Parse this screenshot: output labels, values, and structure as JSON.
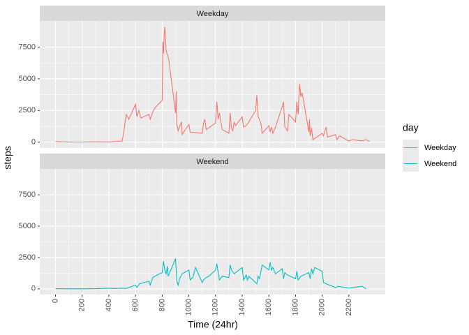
{
  "chart_data": {
    "type": "line",
    "xlabel": "Time (24hr)",
    "ylabel": "steps",
    "legend_title": "day",
    "xlim": [
      -118,
      2473
    ],
    "ylim": [
      -456,
      9567
    ],
    "xticks": [
      0,
      200,
      400,
      600,
      800,
      1000,
      1200,
      1400,
      1600,
      1800,
      2000,
      2200
    ],
    "yticks": [
      0,
      2500,
      5000,
      7500
    ],
    "grid": true,
    "legend": "right",
    "series": [
      {
        "name": "Weekday",
        "color": "#F8766D",
        "x": [
          0,
          100,
          200,
          300,
          400,
          500,
          515,
          530,
          550,
          600,
          610,
          625,
          640,
          700,
          710,
          730,
          745,
          800,
          805,
          810,
          815,
          820,
          830,
          845,
          850,
          900,
          905,
          910,
          920,
          930,
          945,
          950,
          1000,
          1010,
          1100,
          1110,
          1120,
          1130,
          1200,
          1210,
          1220,
          1230,
          1250,
          1300,
          1310,
          1320,
          1330,
          1340,
          1350,
          1400,
          1410,
          1430,
          1450,
          1500,
          1510,
          1520,
          1540,
          1550,
          1600,
          1610,
          1620,
          1630,
          1650,
          1700,
          1710,
          1720,
          1740,
          1750,
          1800,
          1810,
          1820,
          1830,
          1840,
          1850,
          1900,
          1905,
          1910,
          1920,
          1930,
          2000,
          2010,
          2030,
          2040,
          2100,
          2110,
          2130,
          2200,
          2230,
          2300,
          2330,
          2355
        ],
        "values": [
          50,
          20,
          10,
          30,
          20,
          100,
          1000,
          2200,
          1800,
          3000,
          2000,
          2500,
          1900,
          2200,
          1800,
          2400,
          2700,
          3300,
          7900,
          7000,
          8500,
          9100,
          7200,
          6700,
          6500,
          2300,
          4000,
          1400,
          900,
          1200,
          1600,
          600,
          1400,
          800,
          700,
          1500,
          1800,
          1000,
          1500,
          3200,
          1800,
          2300,
          1000,
          700,
          2300,
          1100,
          900,
          1600,
          1300,
          2000,
          1200,
          1300,
          1600,
          2500,
          3700,
          2000,
          1500,
          700,
          1300,
          800,
          1200,
          700,
          1200,
          2800,
          3200,
          1200,
          900,
          2200,
          1600,
          3200,
          2200,
          4600,
          3600,
          3900,
          800,
          1800,
          500,
          1100,
          200,
          700,
          500,
          1200,
          400,
          600,
          200,
          500,
          100,
          200,
          100,
          200,
          50
        ]
      },
      {
        "name": "Weekend",
        "color": "#00BFC4",
        "x": [
          0,
          100,
          200,
          300,
          400,
          430,
          500,
          530,
          600,
          610,
          630,
          700,
          710,
          730,
          745,
          800,
          810,
          820,
          830,
          840,
          845,
          900,
          910,
          920,
          930,
          950,
          1000,
          1010,
          1030,
          1050,
          1100,
          1110,
          1130,
          1150,
          1200,
          1210,
          1220,
          1230,
          1250,
          1300,
          1310,
          1320,
          1340,
          1400,
          1410,
          1430,
          1440,
          1450,
          1500,
          1510,
          1520,
          1530,
          1550,
          1600,
          1610,
          1620,
          1630,
          1650,
          1700,
          1710,
          1720,
          1740,
          1800,
          1810,
          1820,
          1840,
          1900,
          1910,
          1920,
          1930,
          1945,
          2000,
          2010,
          2030,
          2100,
          2120,
          2200,
          2300,
          2330
        ],
        "values": [
          10,
          0,
          0,
          10,
          50,
          30,
          50,
          30,
          300,
          100,
          400,
          600,
          300,
          900,
          1000,
          1300,
          2200,
          1500,
          1200,
          1800,
          1000,
          2400,
          600,
          300,
          800,
          1200,
          1500,
          700,
          900,
          1700,
          500,
          700,
          900,
          1000,
          1500,
          2000,
          1300,
          700,
          1000,
          900,
          1900,
          1500,
          1200,
          1700,
          700,
          1100,
          700,
          1000,
          500,
          400,
          1000,
          800,
          1900,
          1500,
          2100,
          1500,
          1700,
          1200,
          1600,
          800,
          1300,
          1100,
          800,
          1400,
          700,
          1000,
          1300,
          800,
          1600,
          1200,
          1700,
          1400,
          500,
          400,
          100,
          200,
          50,
          200,
          0
        ]
      }
    ]
  }
}
